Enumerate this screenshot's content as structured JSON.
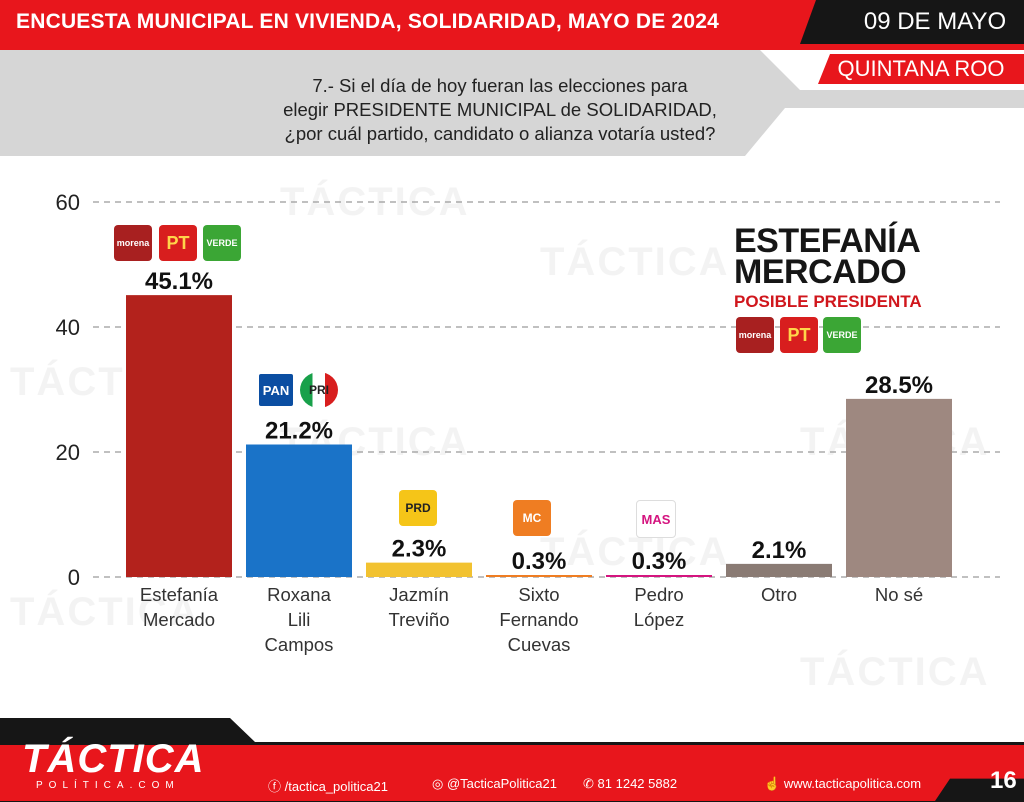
{
  "header": {
    "title": "ENCUESTA  MUNICIPAL EN VIVIENDA, SOLIDARIDAD, MAYO DE 2024",
    "date": "09 DE MAYO",
    "region": "QUINTANA ROO"
  },
  "question": {
    "line1": "7.- Si el día de hoy fueran las elecciones para",
    "line2": "elegir PRESIDENTE MUNICIPAL de SOLIDARIDAD,",
    "line3": "¿por cuál partido, candidato o alianza votaría usted?"
  },
  "chart_data": {
    "type": "bar",
    "categories": [
      [
        "Estefanía",
        "Mercado"
      ],
      [
        "Roxana",
        "Lili",
        "Campos"
      ],
      [
        "Jazmín",
        "Treviño"
      ],
      [
        "Sixto",
        "Fernando",
        "Cuevas"
      ],
      [
        "Pedro",
        "López"
      ],
      [
        "Otro"
      ],
      [
        "No sé"
      ]
    ],
    "values": [
      45.1,
      21.2,
      2.3,
      0.3,
      0.3,
      2.1,
      28.5
    ],
    "value_labels": [
      "45.1%",
      "21.2%",
      "2.3%",
      "0.3%",
      "0.3%",
      "2.1%",
      "28.5%"
    ],
    "colors": [
      "#b3221c",
      "#1a73c8",
      "#f2c230",
      "#ef7d22",
      "#d4147f",
      "#8a7b74",
      "#9e8880"
    ],
    "ylim": [
      0,
      60
    ],
    "yticks": [
      0,
      20,
      40,
      60
    ],
    "grid": true
  },
  "party_logos": {
    "morena": "morena",
    "pt": "PT",
    "verde": "VERDE",
    "pan": "PAN",
    "pri": "PRI",
    "prd": "PRD",
    "mc": "MC",
    "mas": "MAS"
  },
  "highlight": {
    "name_line1": "ESTEFANÍA",
    "name_line2": "MERCADO",
    "subtitle": "POSIBLE PRESIDENTA"
  },
  "footer": {
    "brand": "TÁCTICA",
    "brand_sub": "POLÍTICA.COM",
    "facebook": "/tactica_politica21",
    "instagram": "@TacticaPolitica21",
    "whatsapp": "81 1242 5882",
    "website": "www.tacticapolitica.com",
    "page": "16"
  },
  "watermark": "TÁCTICA"
}
